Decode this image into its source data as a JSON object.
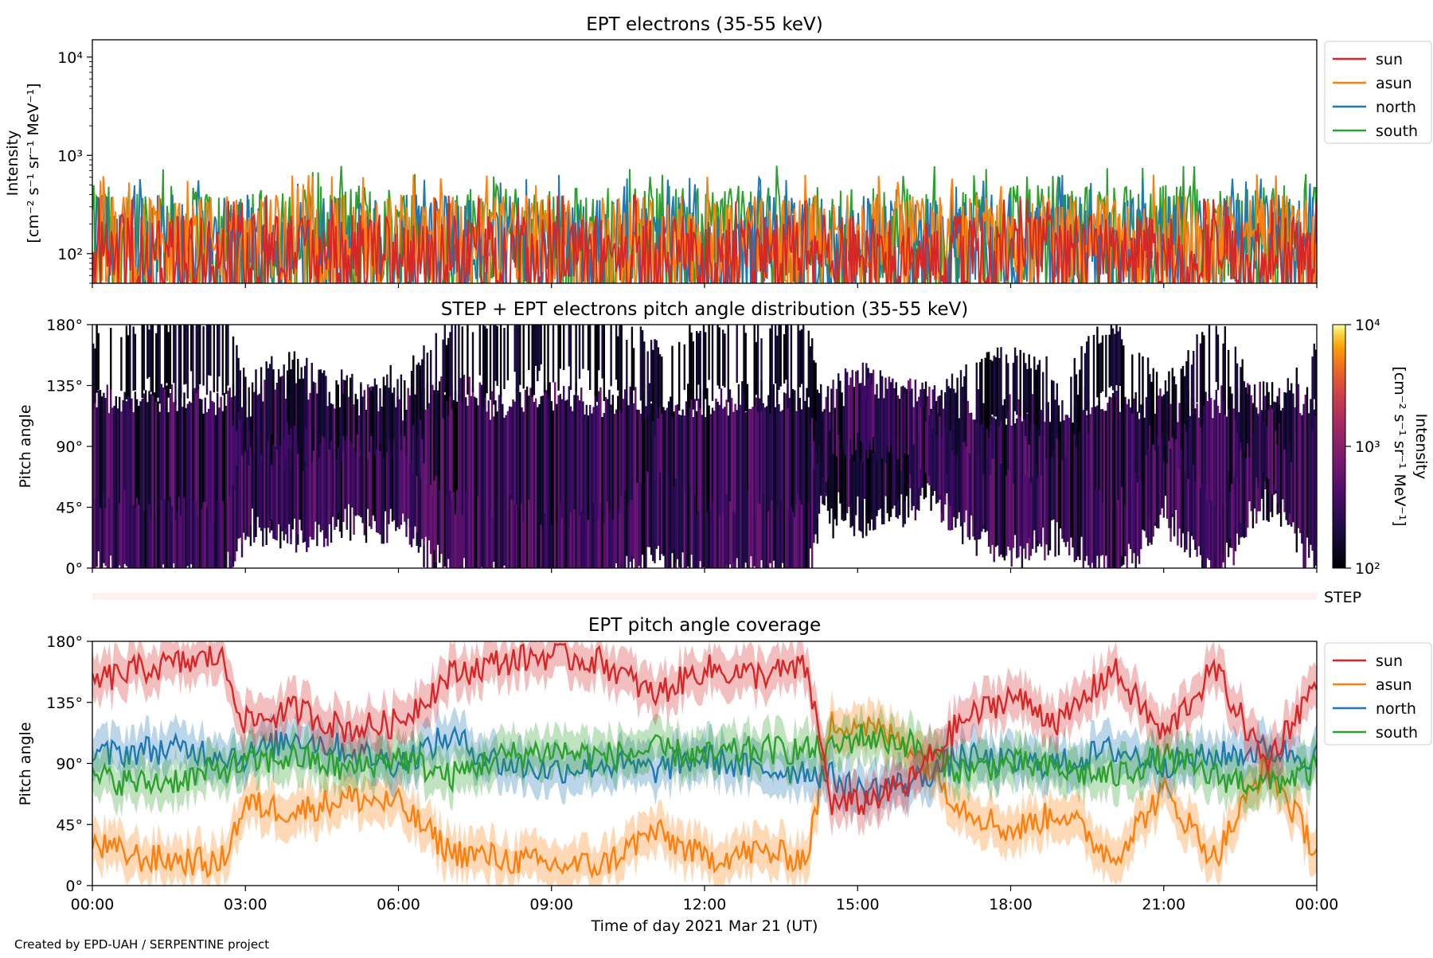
{
  "footer": "Created by EPD-UAH / SERPENTINE project",
  "xlabel": "Time of day 2021 Mar 21 (UT)",
  "xticks": [
    "00:00",
    "03:00",
    "06:00",
    "09:00",
    "12:00",
    "15:00",
    "18:00",
    "21:00",
    "00:00"
  ],
  "step_label": "STEP",
  "colors": {
    "sun": "#d62728",
    "asun": "#ff7f0e",
    "north": "#1f77b4",
    "south": "#2ca02c"
  },
  "chart_data": [
    {
      "id": "intensity",
      "type": "line",
      "title": "EPT electrons (35-55 keV)",
      "ylabel_line1": "Intensity",
      "ylabel_line2": "[cm⁻² s⁻¹ sr⁻¹ MeV⁻¹]",
      "yscale": "log",
      "ylim": [
        50,
        15000
      ],
      "yticks": [
        {
          "value": 100,
          "label": "10²"
        },
        {
          "value": 1000,
          "label": "10³"
        },
        {
          "value": 10000,
          "label": "10⁴"
        }
      ],
      "x_range_hours": [
        0,
        24
      ],
      "legend_position": "outside-right",
      "series": [
        {
          "name": "sun",
          "typical_range": [
            50,
            250
          ],
          "color": "#d62728"
        },
        {
          "name": "asun",
          "typical_range": [
            50,
            400
          ],
          "color": "#ff7f0e"
        },
        {
          "name": "north",
          "typical_range": [
            50,
            400
          ],
          "color": "#1f77b4"
        },
        {
          "name": "south",
          "typical_range": [
            50,
            500
          ],
          "color": "#2ca02c"
        }
      ]
    },
    {
      "id": "pad",
      "type": "heatmap",
      "title": "STEP + EPT electrons pitch angle distribution (35-55 keV)",
      "ylabel": "Pitch angle",
      "ylim": [
        0,
        180
      ],
      "yticks": [
        "0°",
        "45°",
        "90°",
        "135°",
        "180°"
      ],
      "colorbar": {
        "label": "Intensity",
        "units": "[cm⁻² s⁻¹ sr⁻¹ MeV⁻¹]",
        "scale": "log",
        "range": [
          100,
          10000
        ],
        "ticks": [
          "10²",
          "10³",
          "10⁴"
        ],
        "colormap": "inferno"
      }
    },
    {
      "id": "coverage",
      "type": "line",
      "title": "EPT pitch angle coverage",
      "ylabel": "Pitch angle",
      "ylim": [
        0,
        180
      ],
      "yticks": [
        "0°",
        "45°",
        "90°",
        "135°",
        "180°"
      ],
      "legend_position": "outside-right",
      "series": [
        {
          "name": "sun",
          "x": [
            0,
            1,
            2,
            2.5,
            3,
            4,
            5,
            6,
            7,
            8,
            9,
            10,
            11,
            12,
            13,
            14,
            14.5,
            15,
            16,
            17,
            18,
            19,
            20,
            21,
            22,
            23,
            24
          ],
          "y": [
            150,
            160,
            165,
            170,
            120,
            130,
            115,
            120,
            155,
            165,
            170,
            165,
            140,
            160,
            155,
            160,
            60,
            60,
            75,
            120,
            140,
            120,
            160,
            110,
            160,
            90,
            150
          ]
        },
        {
          "name": "asun",
          "x": [
            0,
            1,
            2,
            2.5,
            3,
            4,
            5,
            6,
            7,
            8,
            9,
            10,
            11,
            12,
            13,
            14,
            14.5,
            15,
            16,
            17,
            18,
            19,
            20,
            21,
            22,
            23,
            24
          ],
          "y": [
            30,
            20,
            18,
            15,
            60,
            55,
            65,
            60,
            25,
            20,
            15,
            15,
            40,
            20,
            25,
            20,
            120,
            120,
            105,
            60,
            40,
            55,
            20,
            70,
            20,
            90,
            25
          ]
        },
        {
          "name": "north",
          "x": [
            0,
            1,
            2,
            3,
            4,
            5,
            6,
            7,
            8,
            9,
            10,
            11,
            12,
            13,
            14,
            14.5,
            15,
            16,
            17,
            18,
            19,
            20,
            21,
            22,
            23,
            24
          ],
          "y": [
            95,
            100,
            100,
            95,
            110,
            100,
            90,
            110,
            90,
            85,
            90,
            85,
            95,
            85,
            85,
            80,
            70,
            75,
            95,
            90,
            90,
            100,
            90,
            95,
            100,
            95
          ]
        },
        {
          "name": "south",
          "x": [
            0,
            1,
            2,
            3,
            4,
            5,
            6,
            7,
            8,
            9,
            10,
            11,
            12,
            13,
            14,
            14.5,
            15,
            16,
            17,
            18,
            19,
            20,
            21,
            22,
            23,
            24
          ],
          "y": [
            80,
            75,
            80,
            90,
            95,
            85,
            95,
            80,
            95,
            100,
            95,
            100,
            95,
            100,
            100,
            100,
            110,
            105,
            85,
            90,
            85,
            80,
            95,
            80,
            75,
            85
          ]
        }
      ]
    }
  ]
}
